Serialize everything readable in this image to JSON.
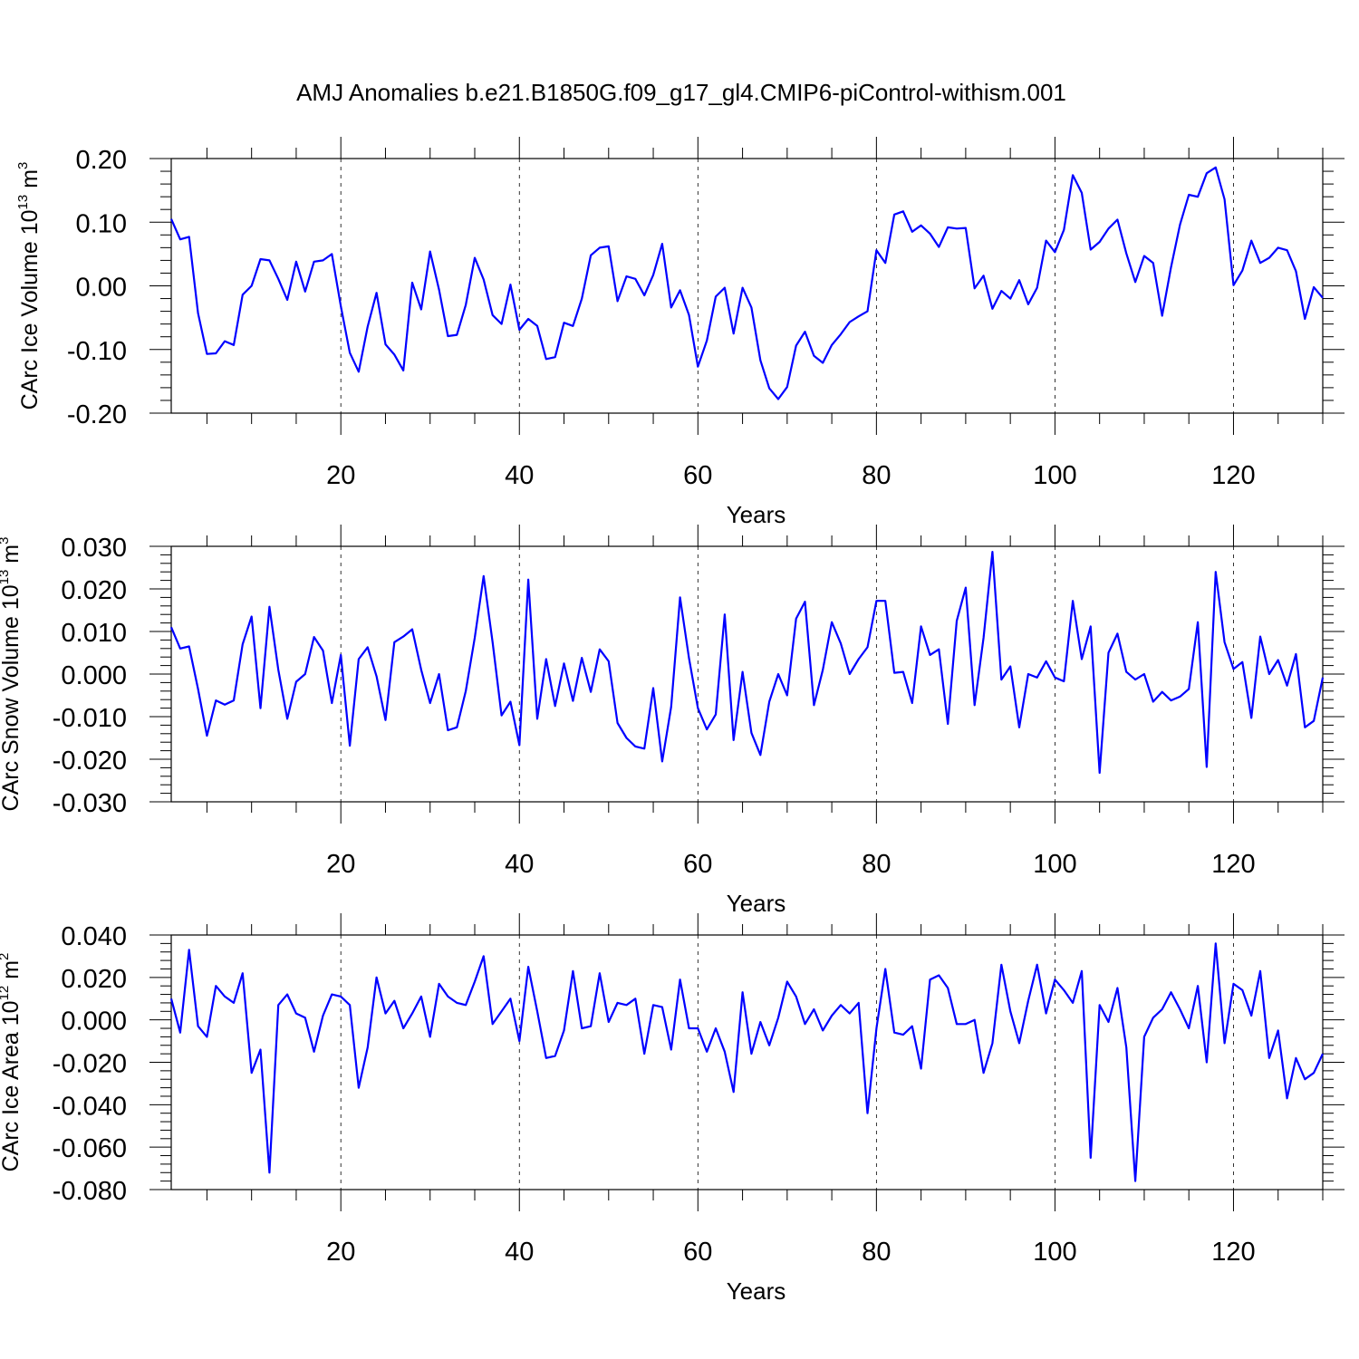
{
  "title": "AMJ Anomalies b.e21.B1850G.f09_g17_gl4.CMIP6-piControl-withism.001",
  "chart_data": [
    {
      "type": "line",
      "title": "AMJ Anomalies b.e21.B1850G.f09_g17_gl4.CMIP6-piControl-withism.001",
      "xlabel": "Years",
      "ylabel": {
        "base": "CArc Ice Volume 10",
        "exp": "13",
        "unit": " m",
        "unit_exp": "3"
      },
      "xlim": [
        1,
        130
      ],
      "ylim": [
        -0.2,
        0.2
      ],
      "x_ticks": [
        20,
        40,
        60,
        80,
        100,
        120
      ],
      "x_tick_labels": [
        "20",
        "40",
        "60",
        "80",
        "100",
        "120"
      ],
      "y_ticks": [
        -0.2,
        -0.1,
        0.0,
        0.1,
        0.2
      ],
      "y_tick_labels": [
        "-0.20",
        "-0.10",
        "0.00",
        "0.10",
        "0.20"
      ],
      "grid": "vertical dashed at major x ticks",
      "color": "#0000ff",
      "x_start": 1,
      "values": [
        0.105,
        0.073,
        0.077,
        -0.043,
        -0.107,
        -0.106,
        -0.087,
        -0.093,
        -0.014,
        0.0,
        0.042,
        0.04,
        0.011,
        -0.022,
        0.038,
        -0.009,
        0.038,
        0.04,
        0.05,
        -0.032,
        -0.105,
        -0.135,
        -0.064,
        -0.011,
        -0.092,
        -0.108,
        -0.133,
        0.005,
        -0.037,
        0.054,
        -0.006,
        -0.079,
        -0.077,
        -0.03,
        0.044,
        0.01,
        -0.046,
        -0.06,
        0.002,
        -0.069,
        -0.052,
        -0.063,
        -0.115,
        -0.112,
        -0.058,
        -0.063,
        -0.02,
        0.048,
        0.06,
        0.062,
        -0.024,
        0.015,
        0.011,
        -0.015,
        0.017,
        0.066,
        -0.034,
        -0.007,
        -0.046,
        -0.127,
        -0.086,
        -0.017,
        -0.003,
        -0.075,
        -0.003,
        -0.034,
        -0.117,
        -0.161,
        -0.178,
        -0.159,
        -0.094,
        -0.072,
        -0.11,
        -0.121,
        -0.093,
        -0.076,
        -0.057,
        -0.048,
        -0.04,
        0.056,
        0.036,
        0.112,
        0.117,
        0.085,
        0.095,
        0.082,
        0.061,
        0.092,
        0.09,
        0.091,
        -0.004,
        0.016,
        -0.036,
        -0.008,
        -0.02,
        0.009,
        -0.029,
        -0.003,
        0.071,
        0.053,
        0.088,
        0.174,
        0.146,
        0.057,
        0.069,
        0.09,
        0.104,
        0.051,
        0.006,
        0.047,
        0.036,
        -0.047,
        0.029,
        0.096,
        0.143,
        0.14,
        0.177,
        0.186,
        0.136,
        0.001,
        0.024,
        0.071,
        0.036,
        0.044,
        0.06,
        0.056,
        0.023,
        -0.052,
        -0.002,
        -0.019
      ]
    },
    {
      "type": "line",
      "xlabel": "Years",
      "ylabel": {
        "base": "CArc Snow Volume 10",
        "exp": "13",
        "unit": " m",
        "unit_exp": "3"
      },
      "xlim": [
        1,
        130
      ],
      "ylim": [
        -0.03,
        0.03
      ],
      "x_ticks": [
        20,
        40,
        60,
        80,
        100,
        120
      ],
      "x_tick_labels": [
        "20",
        "40",
        "60",
        "80",
        "100",
        "120"
      ],
      "y_ticks": [
        -0.03,
        -0.02,
        -0.01,
        0.0,
        0.01,
        0.02,
        0.03
      ],
      "y_tick_labels": [
        "-0.030",
        "-0.020",
        "-0.010",
        "0.000",
        "0.010",
        "0.020",
        "0.030"
      ],
      "grid": "vertical dashed at major x ticks",
      "color": "#0000ff",
      "x_start": 1,
      "values": [
        0.011,
        0.006,
        0.0065,
        -0.0035,
        -0.0145,
        -0.0062,
        -0.0072,
        -0.0062,
        0.007,
        0.0135,
        -0.008,
        0.0158,
        0.001,
        -0.0105,
        -0.0018,
        0.0,
        0.0087,
        0.0055,
        -0.0068,
        0.0045,
        -0.0168,
        0.0035,
        0.0063,
        -0.0005,
        -0.0108,
        0.0075,
        0.0088,
        0.0105,
        0.001,
        -0.0068,
        0.0,
        -0.0132,
        -0.0125,
        -0.004,
        0.0085,
        0.023,
        0.0075,
        -0.0097,
        -0.0065,
        -0.0167,
        0.0222,
        -0.0105,
        0.0035,
        -0.0075,
        0.0025,
        -0.0063,
        0.0038,
        -0.0042,
        0.0058,
        0.003,
        -0.0115,
        -0.015,
        -0.017,
        -0.0175,
        -0.0033,
        -0.0205,
        -0.0077,
        0.018,
        0.0037,
        -0.008,
        -0.013,
        -0.0095,
        0.014,
        -0.0155,
        0.0005,
        -0.0138,
        -0.019,
        -0.0065,
        0.0,
        -0.005,
        0.013,
        0.017,
        -0.0073,
        0.001,
        0.0122,
        0.0072,
        0.0,
        0.0035,
        0.0063,
        0.0172,
        0.0172,
        0.0003,
        0.0005,
        -0.0068,
        0.0112,
        0.0045,
        0.0058,
        -0.0117,
        0.0125,
        0.0203,
        -0.0073,
        0.0085,
        0.0287,
        -0.0013,
        0.0018,
        -0.0125,
        0.0,
        -0.0008,
        0.003,
        -0.0008,
        -0.0017,
        0.0172,
        0.0035,
        0.0112,
        -0.0232,
        0.005,
        0.0095,
        0.0005,
        -0.0013,
        0.0,
        -0.0065,
        -0.0042,
        -0.0062,
        -0.0053,
        -0.0035,
        0.0122,
        -0.0218,
        0.024,
        0.0075,
        0.0012,
        0.0028,
        -0.0103,
        0.0088,
        0.0,
        0.0033,
        -0.0027,
        0.0047,
        -0.0125,
        -0.011,
        -0.0008
      ]
    },
    {
      "type": "line",
      "xlabel": "Years",
      "ylabel": {
        "base": "CArc Ice Area 10",
        "exp": "12",
        "unit": " m",
        "unit_exp": "2"
      },
      "xlim": [
        1,
        130
      ],
      "ylim": [
        -0.08,
        0.04
      ],
      "x_ticks": [
        20,
        40,
        60,
        80,
        100,
        120
      ],
      "x_tick_labels": [
        "20",
        "40",
        "60",
        "80",
        "100",
        "120"
      ],
      "y_ticks": [
        -0.08,
        -0.06,
        -0.04,
        -0.02,
        0.0,
        0.02,
        0.04
      ],
      "y_tick_labels": [
        "-0.080",
        "-0.060",
        "-0.040",
        "-0.020",
        "0.000",
        "0.020",
        "0.040"
      ],
      "grid": "vertical dashed at major x ticks",
      "color": "#0000ff",
      "x_start": 1,
      "values": [
        0.01,
        -0.006,
        0.033,
        -0.003,
        -0.008,
        0.016,
        0.011,
        0.008,
        0.022,
        -0.025,
        -0.014,
        -0.072,
        0.007,
        0.012,
        0.003,
        0.001,
        -0.015,
        0.002,
        0.012,
        0.011,
        0.007,
        -0.032,
        -0.013,
        0.02,
        0.003,
        0.009,
        -0.004,
        0.003,
        0.011,
        -0.008,
        0.017,
        0.011,
        0.008,
        0.007,
        0.018,
        0.03,
        -0.002,
        0.004,
        0.01,
        -0.01,
        0.025,
        0.004,
        -0.018,
        -0.017,
        -0.005,
        0.023,
        -0.004,
        -0.003,
        0.022,
        -0.001,
        0.008,
        0.007,
        0.01,
        -0.016,
        0.007,
        0.006,
        -0.014,
        0.019,
        -0.004,
        -0.004,
        -0.015,
        -0.004,
        -0.015,
        -0.034,
        0.013,
        -0.016,
        -0.001,
        -0.012,
        0.001,
        0.018,
        0.011,
        -0.002,
        0.005,
        -0.005,
        0.002,
        0.007,
        0.003,
        0.008,
        -0.044,
        -0.004,
        0.024,
        -0.006,
        -0.007,
        -0.003,
        -0.023,
        0.019,
        0.021,
        0.015,
        -0.002,
        -0.002,
        0.0,
        -0.025,
        -0.011,
        0.026,
        0.004,
        -0.011,
        0.009,
        0.026,
        0.003,
        0.019,
        0.014,
        0.008,
        0.023,
        -0.065,
        0.007,
        -0.001,
        0.015,
        -0.013,
        -0.076,
        -0.008,
        0.001,
        0.005,
        0.013,
        0.005,
        -0.004,
        0.016,
        -0.02,
        0.036,
        -0.011,
        0.017,
        0.014,
        0.002,
        0.023,
        -0.018,
        -0.005,
        -0.037,
        -0.018,
        -0.028,
        -0.025,
        -0.016
      ]
    }
  ]
}
